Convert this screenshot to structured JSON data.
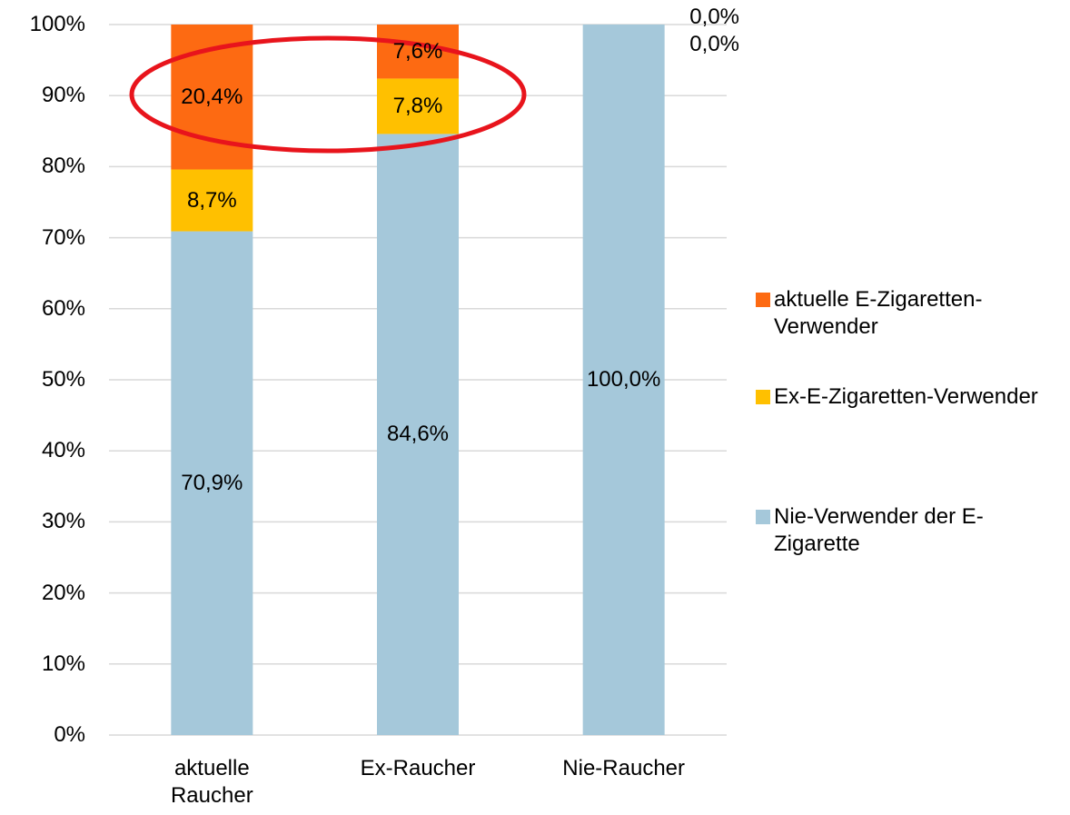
{
  "chart_data": {
    "type": "bar",
    "stacked": true,
    "categories": [
      "aktuelle Raucher",
      "Ex-Raucher",
      "Nie-Raucher"
    ],
    "series": [
      {
        "name": "Nie-Verwender der E-Zigarette",
        "color": "#a5c8da",
        "values": [
          70.9,
          84.6,
          100
        ],
        "value_labels": [
          "70,9%",
          "84,6%",
          "100,0%"
        ]
      },
      {
        "name": "Ex-E-Zigaretten-Verwender",
        "color": "#ffc000",
        "values": [
          8.7,
          7.8,
          0
        ],
        "value_labels": [
          "8,7%",
          "7,8%",
          "0,0%"
        ]
      },
      {
        "name": "aktuelle E-Zigaretten-Verwender",
        "color": "#fd6a12",
        "values": [
          20.4,
          7.6,
          0
        ],
        "value_labels": [
          "20,4%",
          "7,6%",
          "0,0%"
        ]
      }
    ],
    "ylim": [
      0,
      100
    ],
    "yticks": [
      {
        "value": 0,
        "label": "0%"
      },
      {
        "value": 10,
        "label": "10%"
      },
      {
        "value": 20,
        "label": "20%"
      },
      {
        "value": 30,
        "label": "30%"
      },
      {
        "value": 40,
        "label": "40%"
      },
      {
        "value": 50,
        "label": "50%"
      },
      {
        "value": 60,
        "label": "60%"
      },
      {
        "value": 70,
        "label": "70%"
      },
      {
        "value": 80,
        "label": "80%"
      },
      {
        "value": 90,
        "label": "90%"
      },
      {
        "value": 100,
        "label": "100%"
      }
    ],
    "grid": true,
    "legend": "right"
  }
}
